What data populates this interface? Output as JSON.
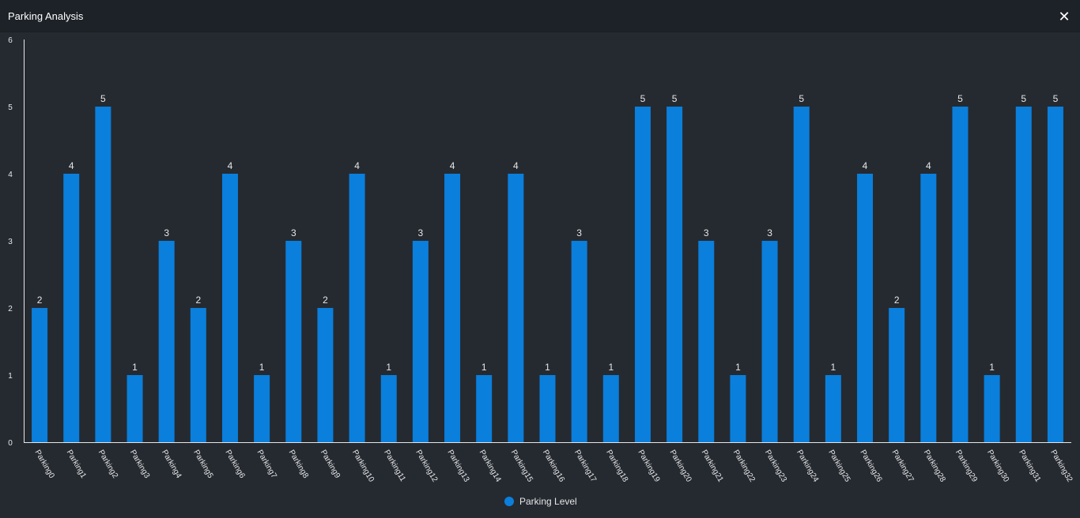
{
  "window": {
    "title": "Parking Analysis",
    "close_label": "✕"
  },
  "colors": {
    "bar": "#0a7fdc",
    "axis": "#e6e6e6",
    "text": "#e6e6e6",
    "background": "#252a31",
    "titlebar": "#1d2228"
  },
  "chart_data": {
    "type": "bar",
    "categories": [
      "Parking0",
      "Parking1",
      "Parking2",
      "Parking3",
      "Parking4",
      "Parking5",
      "Parking6",
      "Parking7",
      "Parking8",
      "Parking9",
      "Parking10",
      "Parking11",
      "Parking12",
      "Parking13",
      "Parking14",
      "Parking15",
      "Parking16",
      "Parking17",
      "Parking18",
      "Parking19",
      "Parking20",
      "Parking21",
      "Parking22",
      "Parking23",
      "Parking24",
      "Parking25",
      "Parking26",
      "Parking27",
      "Parking28",
      "Parking29",
      "Parking30",
      "Parking31",
      "Parking32"
    ],
    "series": [
      {
        "name": "Parking Level",
        "values": [
          2,
          4,
          5,
          1,
          3,
          2,
          4,
          1,
          3,
          2,
          4,
          1,
          3,
          4,
          1,
          4,
          1,
          3,
          1,
          5,
          5,
          3,
          1,
          3,
          5,
          1,
          4,
          2,
          4,
          5,
          1,
          5,
          5
        ]
      }
    ],
    "ylim": [
      0,
      6
    ],
    "yticks": [
      0,
      1,
      2,
      3,
      4,
      5,
      6
    ],
    "grid": false,
    "legend": "bottom-center",
    "data_labels": true
  }
}
